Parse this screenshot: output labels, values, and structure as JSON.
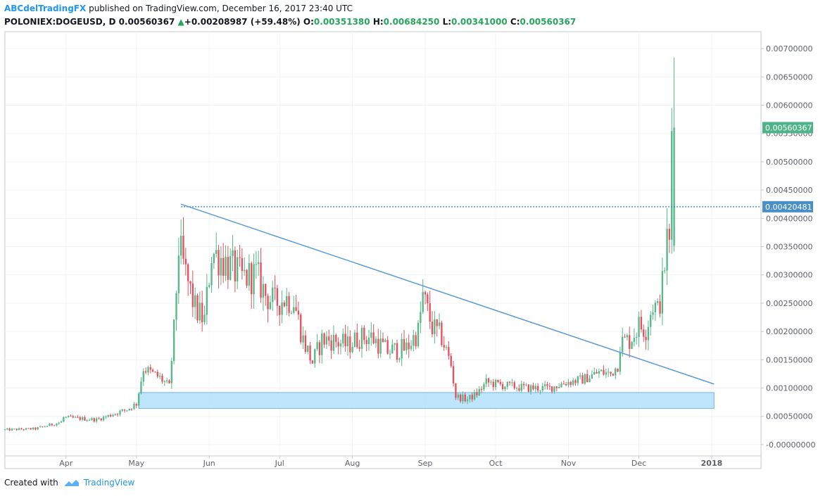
{
  "header": {
    "author": "ABCdelTradingFX",
    "published": "published on TradingView.com, December 16, 2017 23:40 UTC",
    "symbol": "POLONIEX:DOGEUSD, D",
    "last": "0.00560367",
    "arrow": "▲",
    "change": "+0.00208987 (+59.48%)",
    "o_label": "O:",
    "o_value": "0.00351380",
    "h_label": "H:",
    "h_value": "0.00684250",
    "l_label": "L:",
    "l_value": "0.00341000",
    "c_label": "C:",
    "c_value": "0.00560367"
  },
  "footer": {
    "created_with": "Created with",
    "brand": "TradingView"
  },
  "colors": {
    "up": "#53b987",
    "down": "#eb4d5c",
    "trendline": "#5b9bd5",
    "support_zone": "#b3e0fb",
    "resistance_line": "#2a7ec3"
  },
  "chart_data": {
    "type": "candlestick",
    "symbol": "POLONIEX:DOGEUSD",
    "interval": "D",
    "x_tick_labels": [
      "Apr",
      "May",
      "Jun",
      "Jul",
      "Aug",
      "Sep",
      "Oct",
      "Nov",
      "Dec",
      "2018"
    ],
    "y_tick_labels": [
      "0.00700000",
      "0.00650000",
      "0.00600000",
      "0.00550000",
      "0.00500000",
      "0.00450000",
      "0.00400000",
      "0.00350000",
      "0.00300000",
      "0.00250000",
      "0.00200000",
      "0.00150000",
      "0.00100000",
      "0.00050000",
      "-0.00000000"
    ],
    "ylim": [
      -0.0002,
      0.0073
    ],
    "xlim": [
      "2017-03-06",
      "2018-01-22"
    ],
    "last_price_label": "0.00560367",
    "resistance_label": "0.00420481",
    "resistance_level": 0.00420481,
    "trendline": {
      "start": [
        "2017-05-20",
        0.00425
      ],
      "end": [
        "2018-01-02",
        0.00107
      ]
    },
    "support_zone": {
      "start": "2017-05-02",
      "end": "2018-01-02",
      "low": 0.00064,
      "high": 0.00092
    },
    "price_path": [
      [
        "2017-03-06",
        0.00026
      ],
      [
        "2017-03-20",
        0.00028
      ],
      [
        "2017-03-31",
        0.0004
      ],
      [
        "2017-04-01",
        0.00048
      ],
      [
        "2017-04-15",
        0.00044
      ],
      [
        "2017-04-28",
        0.00062
      ],
      [
        "2017-05-02",
        0.00072
      ],
      [
        "2017-05-05",
        0.00135
      ],
      [
        "2017-05-12",
        0.00118
      ],
      [
        "2017-05-16",
        0.00102
      ],
      [
        "2017-05-18",
        0.002
      ],
      [
        "2017-05-20",
        0.0035
      ],
      [
        "2017-05-23",
        0.003
      ],
      [
        "2017-05-27",
        0.0024
      ],
      [
        "2017-05-31",
        0.0022
      ],
      [
        "2017-06-03",
        0.0034
      ],
      [
        "2017-06-07",
        0.0033
      ],
      [
        "2017-06-12",
        0.0031
      ],
      [
        "2017-06-16",
        0.00295
      ],
      [
        "2017-06-22",
        0.003
      ],
      [
        "2017-06-26",
        0.00265
      ],
      [
        "2017-06-30",
        0.0025
      ],
      [
        "2017-07-04",
        0.00258
      ],
      [
        "2017-07-08",
        0.00255
      ],
      [
        "2017-07-12",
        0.00185
      ],
      [
        "2017-07-16",
        0.00145
      ],
      [
        "2017-07-20",
        0.00185
      ],
      [
        "2017-07-24",
        0.00185
      ],
      [
        "2017-07-31",
        0.00175
      ],
      [
        "2017-08-05",
        0.0019
      ],
      [
        "2017-08-10",
        0.0019
      ],
      [
        "2017-08-17",
        0.00165
      ],
      [
        "2017-08-25",
        0.0017
      ],
      [
        "2017-08-30",
        0.002
      ],
      [
        "2017-09-01",
        0.00262
      ],
      [
        "2017-09-05",
        0.00208
      ],
      [
        "2017-09-09",
        0.0019
      ],
      [
        "2017-09-13",
        0.0014
      ],
      [
        "2017-09-15",
        0.00085
      ],
      [
        "2017-09-20",
        0.0008
      ],
      [
        "2017-09-24",
        0.0009
      ],
      [
        "2017-09-28",
        0.0011
      ],
      [
        "2017-10-05",
        0.00105
      ],
      [
        "2017-10-15",
        0.001
      ],
      [
        "2017-10-25",
        0.001
      ],
      [
        "2017-11-01",
        0.0011
      ],
      [
        "2017-11-08",
        0.00115
      ],
      [
        "2017-11-15",
        0.00128
      ],
      [
        "2017-11-20",
        0.00125
      ],
      [
        "2017-11-23",
        0.0014
      ],
      [
        "2017-11-24",
        0.0018
      ],
      [
        "2017-11-28",
        0.00185
      ],
      [
        "2017-12-02",
        0.0021
      ],
      [
        "2017-12-05",
        0.00205
      ],
      [
        "2017-12-08",
        0.0025
      ],
      [
        "2017-12-10",
        0.00235
      ],
      [
        "2017-12-12",
        0.0028
      ],
      [
        "2017-12-14",
        0.0036
      ],
      [
        "2017-12-15",
        0.00351
      ],
      [
        "2017-12-16",
        0.00560367
      ]
    ],
    "last_candle": {
      "date": "2017-12-16",
      "open": 0.0035138,
      "high": 0.0068425,
      "low": 0.00341,
      "close": 0.00560367
    },
    "grid": true
  }
}
